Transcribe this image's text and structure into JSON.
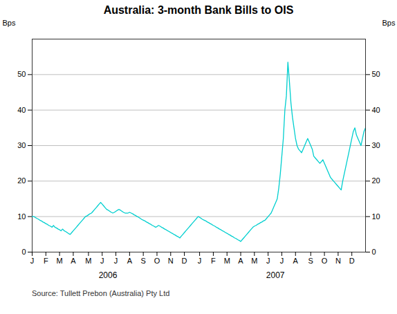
{
  "chart_data": {
    "type": "line",
    "title": "Australia: 3-month Bank Bills to OIS",
    "ylabel": "Bps",
    "y2label": "Bps",
    "source": "Source: Tullett Prebon (Australia) Pty Ltd",
    "annotations": [
      "2006",
      "2007"
    ],
    "color": "#00CFCF",
    "ylim": [
      0,
      60
    ],
    "yticks": [
      0,
      10,
      20,
      30,
      40,
      50
    ],
    "y2lim": [
      0,
      60
    ],
    "y2ticks": [
      0,
      10,
      20,
      30,
      40,
      50
    ],
    "grid": true,
    "categories": [
      "J",
      null,
      null,
      null,
      null,
      null,
      null,
      null,
      null,
      "F",
      null,
      null,
      null,
      null,
      null,
      null,
      null,
      null,
      "M",
      null,
      null,
      null,
      null,
      null,
      null,
      null,
      null,
      "A",
      null,
      null,
      null,
      null,
      null,
      null,
      null,
      null,
      null,
      "M",
      null,
      null,
      null,
      null,
      null,
      null,
      null,
      null,
      "J",
      null,
      null,
      null,
      null,
      null,
      null,
      null,
      null,
      "J",
      null,
      null,
      null,
      null,
      null,
      null,
      null,
      null,
      "A",
      null,
      null,
      null,
      null,
      null,
      null,
      null,
      null,
      "S",
      null,
      null,
      null,
      null,
      null,
      null,
      null,
      null,
      "O",
      null,
      null,
      null,
      null,
      null,
      null,
      null,
      null,
      "N",
      null,
      null,
      null,
      null,
      null,
      null,
      null,
      null,
      "D",
      null,
      null,
      null,
      null,
      null,
      null,
      null,
      null,
      null,
      "J",
      null,
      null,
      null,
      null,
      null,
      null,
      null,
      null,
      "F",
      null,
      null,
      null,
      null,
      null,
      null,
      null,
      null,
      "M",
      null,
      null,
      null,
      null,
      null,
      null,
      null,
      null,
      "A",
      null,
      null,
      null,
      null,
      null,
      null,
      null,
      null,
      "M",
      null,
      null,
      null,
      null,
      null,
      null,
      null,
      null,
      "J",
      null,
      null,
      null,
      null,
      null,
      null,
      null,
      null,
      "J",
      null,
      null,
      null,
      null,
      null,
      null,
      null,
      null,
      "A",
      null,
      null,
      null,
      null,
      null,
      null,
      null,
      null,
      null,
      "S",
      null,
      null,
      null,
      null,
      null,
      null,
      null,
      null,
      "O",
      null,
      null,
      null,
      null,
      null,
      null,
      null,
      null,
      "N",
      null,
      null,
      null,
      null,
      null,
      null,
      null,
      null,
      "D",
      null,
      null,
      null,
      null,
      null,
      null,
      null,
      null,
      null
    ],
    "values": [
      10.0,
      10.0,
      9.8,
      9.5,
      9.3,
      9.0,
      8.8,
      8.5,
      8.3,
      8.0,
      7.8,
      7.5,
      7.3,
      7.0,
      7.5,
      7.0,
      6.8,
      6.5,
      6.3,
      6.0,
      6.5,
      6.0,
      5.8,
      5.5,
      5.2,
      5.0,
      5.5,
      6.0,
      6.5,
      7.0,
      7.5,
      8.0,
      8.5,
      9.0,
      9.5,
      10.0,
      10.2,
      10.5,
      10.8,
      11.0,
      11.5,
      12.0,
      12.5,
      13.0,
      13.5,
      14.0,
      13.5,
      13.0,
      12.5,
      12.0,
      11.8,
      11.5,
      11.2,
      11.0,
      11.2,
      11.5,
      11.8,
      12.0,
      11.8,
      11.5,
      11.2,
      11.0,
      11.0,
      11.0,
      11.2,
      11.0,
      10.8,
      10.5,
      10.3,
      10.0,
      9.8,
      9.5,
      9.2,
      9.0,
      8.8,
      8.5,
      8.3,
      8.0,
      7.8,
      7.5,
      7.3,
      7.0,
      7.2,
      7.5,
      7.3,
      7.0,
      6.8,
      6.5,
      6.3,
      6.0,
      5.8,
      5.5,
      5.3,
      5.0,
      4.8,
      4.5,
      4.3,
      4.0,
      4.5,
      5.0,
      5.5,
      6.0,
      6.5,
      7.0,
      7.5,
      8.0,
      8.5,
      9.0,
      9.5,
      10.0,
      9.8,
      9.5,
      9.2,
      9.0,
      8.8,
      8.5,
      8.3,
      8.0,
      7.8,
      7.5,
      7.3,
      7.0,
      6.8,
      6.5,
      6.3,
      6.0,
      5.8,
      5.5,
      5.3,
      5.0,
      4.8,
      4.5,
      4.3,
      4.0,
      3.8,
      3.5,
      3.3,
      3.0,
      3.5,
      4.0,
      4.5,
      5.0,
      5.5,
      6.0,
      6.5,
      7.0,
      7.3,
      7.5,
      7.8,
      8.0,
      8.3,
      8.5,
      8.8,
      9.0,
      9.5,
      10.0,
      10.5,
      11.0,
      12.0,
      13.0,
      14.0,
      15.0,
      18.0,
      22.0,
      27.0,
      32.0,
      40.0,
      44.0,
      53.5,
      48.0,
      42.0,
      38.0,
      35.0,
      32.0,
      30.0,
      29.0,
      28.5,
      28.0,
      29.0,
      30.0,
      31.0,
      32.0,
      31.0,
      30.0,
      29.0,
      27.0,
      26.5,
      26.0,
      25.5,
      25.0,
      25.5,
      26.0,
      25.0,
      24.0,
      23.0,
      22.0,
      21.0,
      20.5,
      20.0,
      19.5,
      19.0,
      18.5,
      18.0,
      17.5,
      20.0,
      22.0,
      24.0,
      26.0,
      28.0,
      30.0,
      32.0,
      34.0,
      35.0,
      33.0,
      32.0,
      31.0,
      30.0,
      32.0,
      34.0,
      35.0
    ]
  }
}
